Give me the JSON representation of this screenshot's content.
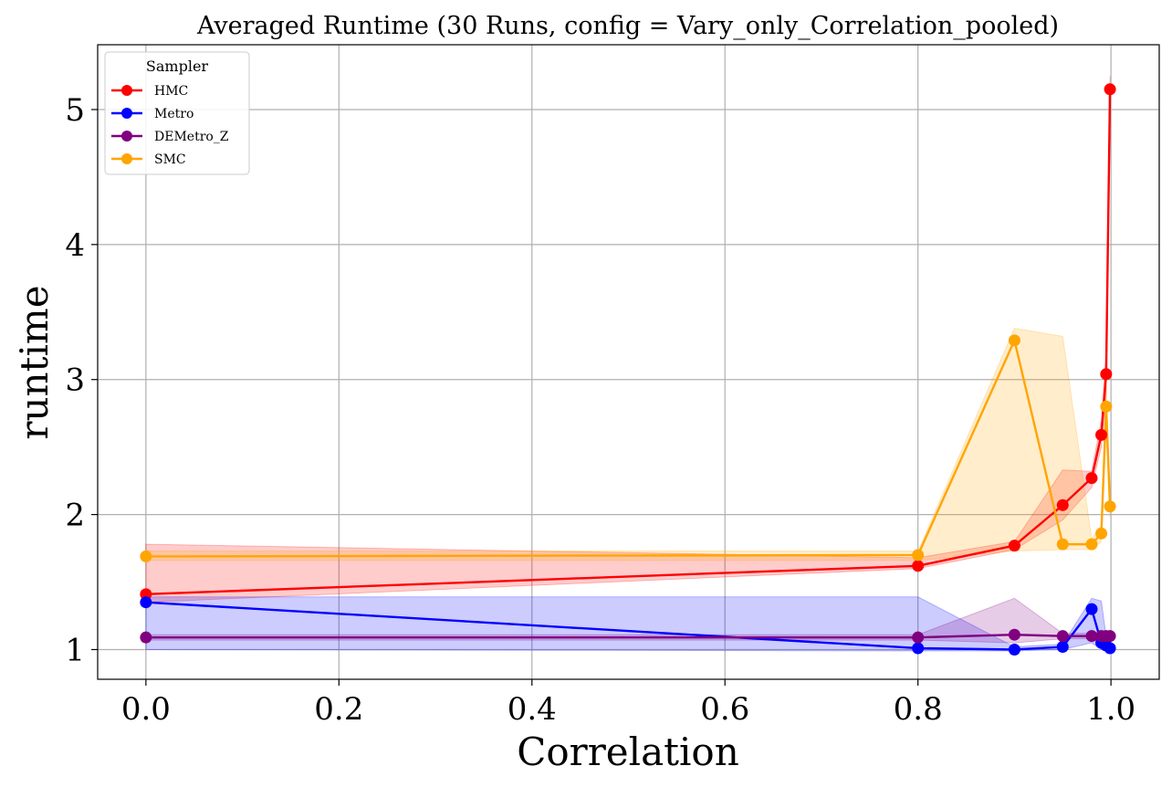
{
  "chart_data": {
    "type": "line",
    "title": "Averaged Runtime (30 Runs, config = Vary_only_Correlation_pooled)",
    "xlabel": "Correlation",
    "ylabel": "runtime",
    "xlim": [
      -0.05,
      1.05
    ],
    "ylim": [
      0.78,
      5.48
    ],
    "xticks": [
      "0.0",
      "0.2",
      "0.4",
      "0.6",
      "0.8",
      "1.0"
    ],
    "xtick_values": [
      0.0,
      0.2,
      0.4,
      0.6,
      0.8,
      1.0
    ],
    "yticks": [
      "1",
      "2",
      "3",
      "4",
      "5"
    ],
    "ytick_values": [
      1,
      2,
      3,
      4,
      5
    ],
    "grid": true,
    "legend": {
      "title": "Sampler",
      "placement": "top-left"
    },
    "series": [
      {
        "name": "HMC",
        "color": "#ff0000",
        "x": [
          0.0,
          0.8,
          0.9,
          0.95,
          0.98,
          0.99,
          0.995,
          0.999
        ],
        "y": [
          1.41,
          1.62,
          1.77,
          2.07,
          2.27,
          2.59,
          3.04,
          5.15
        ],
        "lower": [
          1.35,
          1.6,
          1.74,
          1.96,
          2.2,
          2.5,
          2.9,
          4.95
        ],
        "upper": [
          1.78,
          1.68,
          1.8,
          2.33,
          2.32,
          2.7,
          3.2,
          5.25
        ]
      },
      {
        "name": "Metro",
        "color": "#0000ff",
        "x": [
          0.0,
          0.8,
          0.9,
          0.95,
          0.98,
          0.99,
          0.995,
          0.999
        ],
        "y": [
          1.35,
          1.01,
          1.0,
          1.02,
          1.3,
          1.05,
          1.03,
          1.01
        ],
        "lower": [
          1.0,
          0.99,
          0.99,
          1.0,
          1.05,
          1.0,
          1.0,
          1.0
        ],
        "upper": [
          1.39,
          1.39,
          1.02,
          1.04,
          1.38,
          1.36,
          1.1,
          1.03
        ]
      },
      {
        "name": "DEMetro_Z",
        "color": "#800080",
        "x": [
          0.0,
          0.8,
          0.9,
          0.95,
          0.98,
          0.99,
          0.995,
          0.999
        ],
        "y": [
          1.09,
          1.09,
          1.11,
          1.1,
          1.1,
          1.1,
          1.1,
          1.1
        ],
        "lower": [
          1.07,
          1.07,
          1.05,
          1.08,
          1.08,
          1.08,
          1.08,
          1.08
        ],
        "upper": [
          1.11,
          1.11,
          1.38,
          1.12,
          1.12,
          1.12,
          1.12,
          1.12
        ]
      },
      {
        "name": "SMC",
        "color": "#ffa500",
        "x": [
          0.0,
          0.8,
          0.9,
          0.95,
          0.98,
          0.99,
          0.995,
          0.999
        ],
        "y": [
          1.69,
          1.7,
          3.29,
          1.78,
          1.78,
          1.86,
          2.8,
          2.06
        ],
        "lower": [
          1.66,
          1.66,
          1.73,
          1.74,
          1.74,
          1.8,
          2.6,
          1.98
        ],
        "upper": [
          1.73,
          1.73,
          3.38,
          3.32,
          1.82,
          1.92,
          3.0,
          2.12
        ]
      }
    ]
  }
}
